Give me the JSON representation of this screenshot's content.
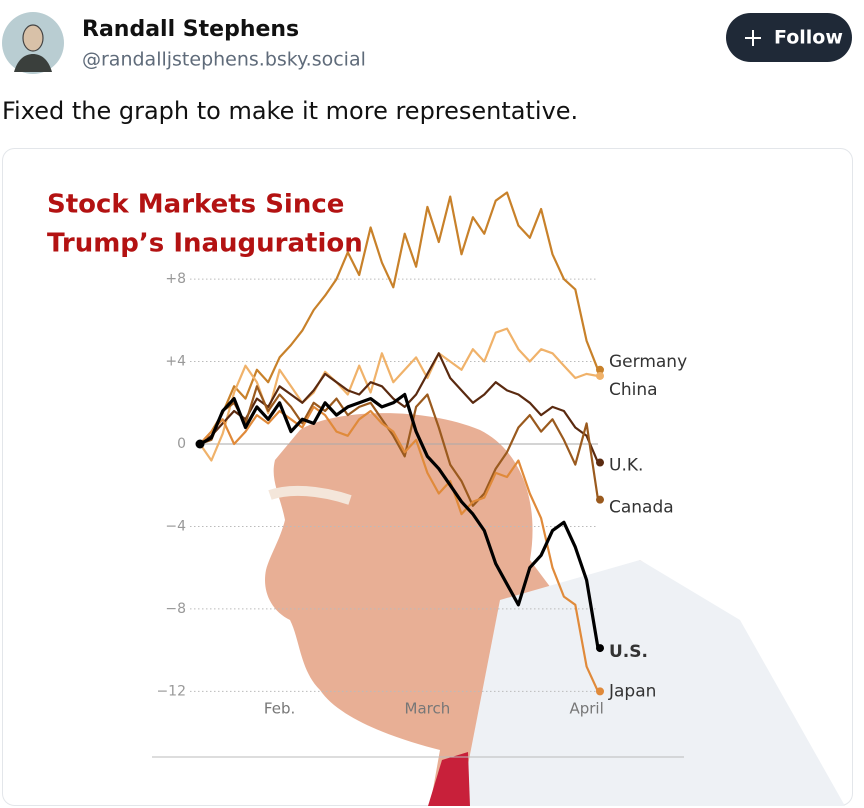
{
  "post": {
    "author": "Randall Stephens",
    "handle": "@randalljstephens.bsky.social",
    "follow": "Follow",
    "text": "Fixed the graph to make it more representative."
  },
  "chart_data": {
    "type": "line",
    "title_lines": [
      "Stock Markets Since",
      "Trump’s Inauguration"
    ],
    "categories": [
      null,
      null,
      null,
      null,
      null,
      null,
      null,
      "Feb.",
      null,
      null,
      null,
      null,
      null,
      null,
      null,
      null,
      null,
      null,
      null,
      null,
      "March",
      null,
      null,
      null,
      null,
      null,
      null,
      null,
      null,
      null,
      null,
      null,
      null,
      null,
      "April",
      null
    ],
    "ylim": [
      -13,
      13
    ],
    "yticks": [
      {
        "value": 8,
        "label": "+8"
      },
      {
        "value": 4,
        "label": "+4"
      },
      0,
      {
        "value": -4,
        "label": "−4"
      },
      {
        "value": -8,
        "label": "−8"
      },
      {
        "value": -12,
        "label": "−12"
      }
    ],
    "grid": true,
    "series": [
      {
        "name": "Germany",
        "color": "#c8812a",
        "values": [
          0,
          0.6,
          1.5,
          2.8,
          2.2,
          3.6,
          3.0,
          4.2,
          4.8,
          5.5,
          6.5,
          7.2,
          8.0,
          9.3,
          8.2,
          10.5,
          8.8,
          7.6,
          10.2,
          8.6,
          11.5,
          9.8,
          12.0,
          9.2,
          11.0,
          10.2,
          11.8,
          12.2,
          10.6,
          10.0,
          11.4,
          9.2,
          8.0,
          7.5,
          5.0,
          3.6
        ]
      },
      {
        "name": "China",
        "color": "#f0b26a",
        "values": [
          0,
          -0.8,
          0.5,
          2.5,
          3.8,
          3.0,
          1.5,
          3.6,
          2.8,
          2.0,
          2.5,
          3.5,
          3.0,
          2.4,
          3.8,
          2.5,
          4.4,
          3.0,
          3.6,
          4.2,
          3.2,
          4.4,
          4.0,
          3.6,
          4.6,
          4.0,
          5.4,
          5.6,
          4.6,
          4.0,
          4.6,
          4.4,
          3.8,
          3.2,
          3.4,
          3.3
        ]
      },
      {
        "name": "U.K.",
        "color": "#5a2a10",
        "values": [
          0,
          0.4,
          1.0,
          1.6,
          1.2,
          2.2,
          1.8,
          2.8,
          2.4,
          2.0,
          2.6,
          3.4,
          3.0,
          2.6,
          2.4,
          3.0,
          2.8,
          2.2,
          1.8,
          2.4,
          3.4,
          4.4,
          3.2,
          2.6,
          2.0,
          2.4,
          3.0,
          2.6,
          2.4,
          2.0,
          1.4,
          1.8,
          1.6,
          0.8,
          0.4,
          -0.9
        ]
      },
      {
        "name": "Canada",
        "color": "#9a5a1e",
        "values": [
          0,
          0.2,
          1.6,
          2.0,
          1.0,
          2.8,
          1.6,
          2.4,
          1.8,
          1.0,
          2.0,
          1.6,
          2.2,
          1.4,
          1.8,
          2.0,
          1.2,
          0.4,
          -0.6,
          1.8,
          2.4,
          0.8,
          -1.0,
          -1.8,
          -3.0,
          -2.4,
          -1.2,
          -0.4,
          0.8,
          1.4,
          0.6,
          1.2,
          0.2,
          -1.0,
          1.0,
          -2.7
        ]
      },
      {
        "name": "Japan",
        "color": "#e08a3a",
        "values": [
          0,
          0.6,
          1.2,
          0.0,
          0.6,
          1.4,
          1.0,
          1.6,
          1.2,
          0.8,
          1.8,
          1.4,
          0.6,
          0.4,
          1.2,
          1.6,
          1.0,
          0.6,
          -0.4,
          0.2,
          -1.4,
          -2.4,
          -1.8,
          -3.4,
          -2.8,
          -2.6,
          -1.4,
          -1.6,
          -0.8,
          -2.4,
          -3.6,
          -6.0,
          -7.4,
          -7.8,
          -10.8,
          -12.0
        ]
      },
      {
        "name": "U.S.",
        "color": "#000000",
        "values": [
          0,
          0.3,
          1.6,
          2.2,
          0.8,
          1.8,
          1.2,
          2.0,
          0.6,
          1.2,
          1.0,
          2.0,
          1.4,
          1.8,
          2.0,
          2.2,
          1.8,
          2.0,
          2.4,
          0.6,
          -0.6,
          -1.2,
          -2.0,
          -2.8,
          -3.4,
          -4.2,
          -5.8,
          -6.8,
          -7.8,
          -6.0,
          -5.4,
          -4.2,
          -3.8,
          -5.0,
          -6.6,
          -9.9
        ]
      }
    ]
  }
}
